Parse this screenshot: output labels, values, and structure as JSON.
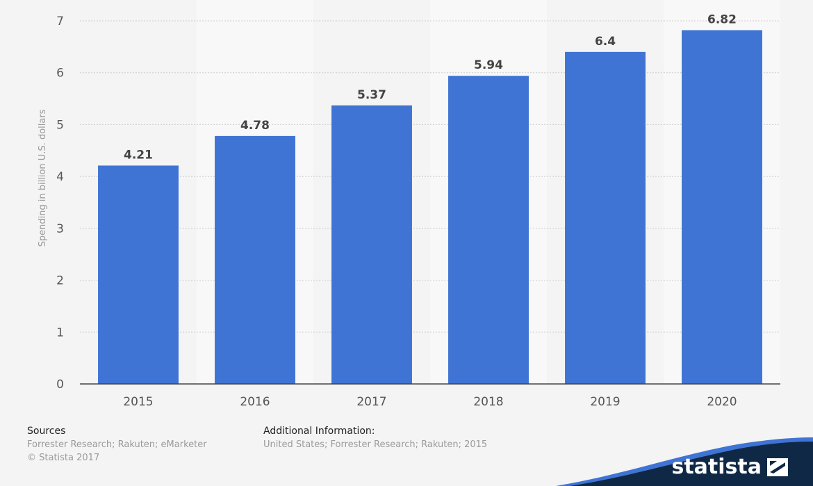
{
  "chart_data": {
    "type": "bar",
    "categories": [
      "2015",
      "2016",
      "2017",
      "2018",
      "2019",
      "2020"
    ],
    "values": [
      4.21,
      4.78,
      5.37,
      5.94,
      6.4,
      6.82
    ],
    "data_labels": [
      "4.21",
      "4.78",
      "5.37",
      "5.94",
      "6.4",
      "6.82"
    ],
    "title": "",
    "xlabel": "",
    "ylabel": "Spending in billion U.S. dollars",
    "ylim": [
      0,
      7
    ],
    "yticks": [
      "0",
      "1",
      "2",
      "3",
      "4",
      "5",
      "6",
      "7"
    ],
    "grid": true,
    "bar_color": "#3f74d4",
    "label_color": "#444444",
    "axis_color": "#444444",
    "grid_color": "#cccccc"
  },
  "footer": {
    "sources_heading": "Sources",
    "sources_line1": "Forrester Research; Rakuten; eMarketer",
    "sources_line2": "© Statista 2017",
    "additional_heading": "Additional Information:",
    "additional_line1": "United States; Forrester Research; Rakuten; 2015"
  },
  "brand": {
    "name": "statista",
    "icon": "statista-logo-icon",
    "wave_color_dark": "#0f2846",
    "wave_color_accent": "#3f74d4"
  }
}
